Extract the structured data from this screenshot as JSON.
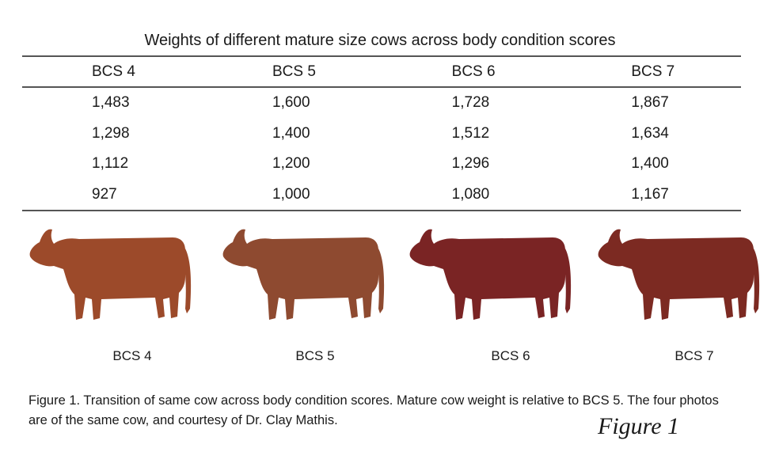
{
  "table": {
    "title": "Weights of different mature size cows across body condition scores",
    "headers": [
      "BCS 4",
      "BCS 5",
      "BCS 6",
      "BCS 7"
    ],
    "rows": [
      [
        "1,483",
        "1,600",
        "1,728",
        "1,867"
      ],
      [
        "1,298",
        "1,400",
        "1,512",
        "1,634"
      ],
      [
        "1,112",
        "1,200",
        "1,296",
        "1,400"
      ],
      [
        "927",
        "1,000",
        "1,080",
        "1,167"
      ]
    ]
  },
  "photos": [
    {
      "label": "BCS 4",
      "color": "#9c4a2a"
    },
    {
      "label": "BCS 5",
      "color": "#8e4a30"
    },
    {
      "label": "BCS 6",
      "color": "#7a2424"
    },
    {
      "label": "BCS 7",
      "color": "#7c2a22"
    }
  ],
  "caption": "Figure 1. Transition of same cow across body condition scores. Mature cow weight is relative to BCS 5. The four photos are of the same cow, and courtesy of Dr. Clay Mathis.",
  "figure_mark": "Figure 1"
}
